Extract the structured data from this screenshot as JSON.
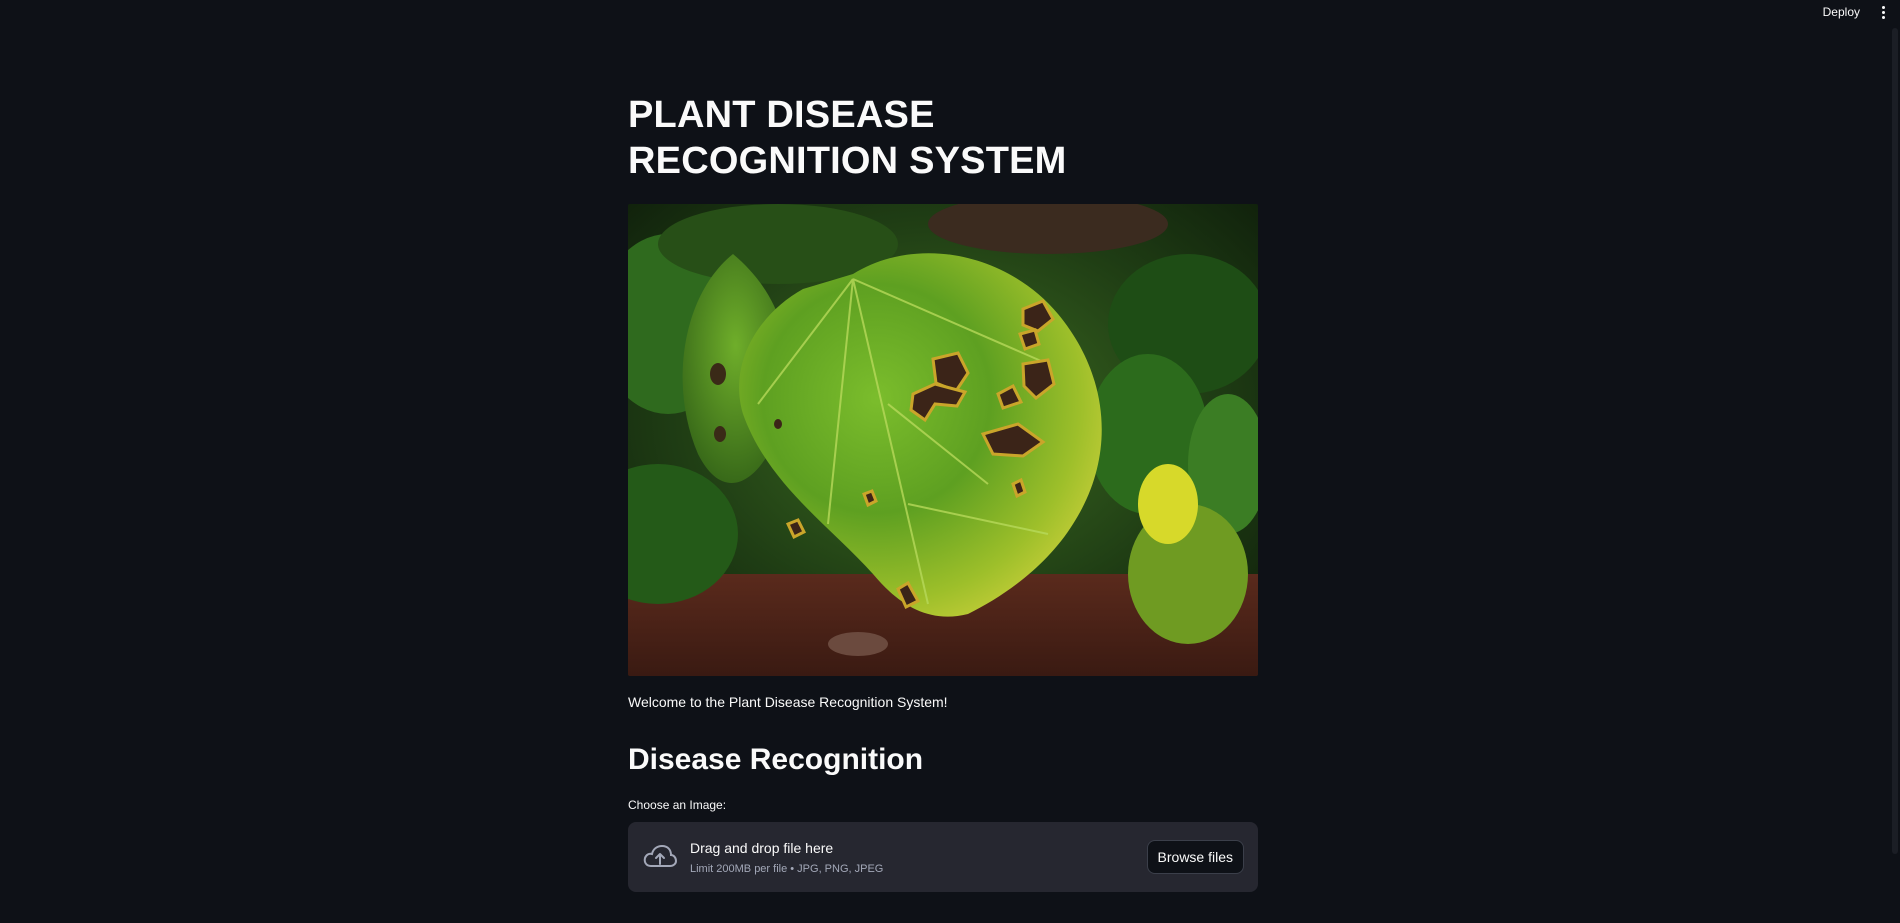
{
  "toolbar": {
    "deploy_label": "Deploy",
    "menu_icon": "vertical-ellipsis-icon"
  },
  "main": {
    "title": "PLANT DISEASE RECOGNITION SYSTEM",
    "hero_image": "leaf with dark necrotic spots",
    "welcome_text": "Welcome to the Plant Disease Recognition System!",
    "section_title": "Disease Recognition",
    "uploader": {
      "label": "Choose an Image:",
      "icon": "cloud-upload-icon",
      "instruction": "Drag and drop file here",
      "limit_text": "Limit 200MB per file • JPG, PNG, JPEG",
      "browse_label": "Browse files"
    }
  },
  "colors": {
    "background": "#0e1117",
    "text": "#fafafa",
    "dropzone": "#262730",
    "muted_text": "#a3a8b8"
  }
}
